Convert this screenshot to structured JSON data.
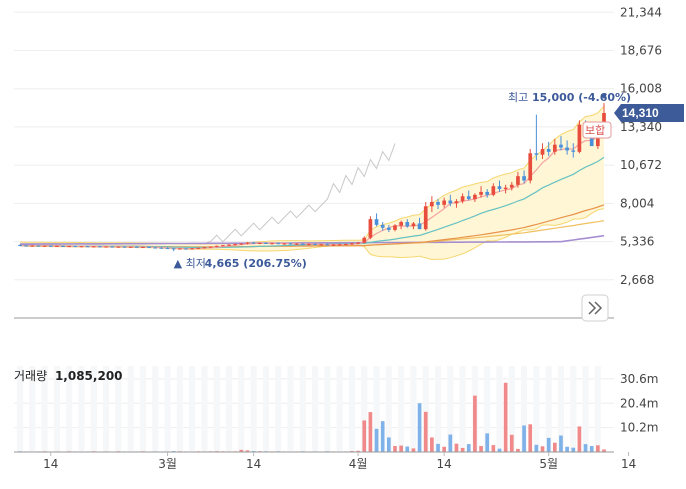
{
  "chart_data": [
    {
      "type": "candlestick",
      "panel": "price",
      "y_ticks": [
        "21,344",
        "18,676",
        "16,008",
        "13,340",
        "10,672",
        "8,004",
        "5,336",
        "2,668"
      ],
      "y_tick_values": [
        21344,
        18676,
        16008,
        13340,
        10672,
        8004,
        5336,
        2668
      ],
      "ylim": [
        0,
        22200
      ],
      "current_price": "14,310",
      "current_price_value": 14310,
      "unchanged_label": "보합",
      "high_label": {
        "prefix": "최고",
        "text": "15,000 (-4.60%)",
        "value": 15000
      },
      "low_label": {
        "prefix": "▲ 최저",
        "text": "4,665 (206.75%)",
        "value": 4665
      },
      "expand_icon": "double-chevron-right-icon",
      "colors": {
        "up": "#e74c3c",
        "down": "#4a90d9",
        "band": "#fff6d5",
        "band_line": "#f5d76e",
        "ma5": "#f4a3a3",
        "ma20": "#66c2c2",
        "ma60": "#e8944a",
        "ma120": "#f0c060",
        "compare": "#cccccc",
        "purple": "#a58fd0",
        "badge": "#3d5a99"
      },
      "candles": [
        [
          5100,
          5140,
          5020,
          5060
        ],
        [
          5060,
          5100,
          4990,
          5020
        ],
        [
          5020,
          5080,
          4980,
          5050
        ],
        [
          5050,
          5090,
          5000,
          5010
        ],
        [
          5010,
          5060,
          4970,
          5040
        ],
        [
          5040,
          5080,
          5000,
          5000
        ],
        [
          5000,
          5050,
          4960,
          5030
        ],
        [
          5030,
          5070,
          4990,
          4990
        ],
        [
          4990,
          5040,
          4950,
          5020
        ],
        [
          5020,
          5060,
          4980,
          4980
        ],
        [
          4980,
          5030,
          4940,
          5010
        ],
        [
          5010,
          5050,
          4970,
          4970
        ],
        [
          4970,
          5020,
          4930,
          5000
        ],
        [
          5000,
          5040,
          4960,
          4960
        ],
        [
          4960,
          5010,
          4920,
          4990
        ],
        [
          4990,
          5030,
          4950,
          4950
        ],
        [
          4950,
          5000,
          4910,
          4980
        ],
        [
          4980,
          5020,
          4940,
          4940
        ],
        [
          4940,
          4990,
          4900,
          4970
        ],
        [
          4970,
          5010,
          4930,
          4930
        ],
        [
          4930,
          4980,
          4890,
          4960
        ],
        [
          4960,
          5000,
          4920,
          4920
        ],
        [
          4920,
          4970,
          4880,
          4900
        ],
        [
          4900,
          4950,
          4860,
          4880
        ],
        [
          4880,
          4930,
          4840,
          4860
        ],
        [
          4860,
          4900,
          4665,
          4820
        ],
        [
          4820,
          4880,
          4780,
          4850
        ],
        [
          4850,
          4900,
          4810,
          4830
        ],
        [
          4830,
          4880,
          4790,
          4860
        ],
        [
          4860,
          4920,
          4820,
          4900
        ],
        [
          4900,
          4960,
          4860,
          4940
        ],
        [
          4940,
          5000,
          4900,
          4980
        ],
        [
          4980,
          5060,
          4940,
          5040
        ],
        [
          5040,
          5100,
          5000,
          5080
        ],
        [
          5080,
          5140,
          5020,
          5120
        ],
        [
          5120,
          5200,
          5060,
          5160
        ],
        [
          5160,
          5220,
          5100,
          5200
        ],
        [
          5200,
          5300,
          5140,
          5260
        ],
        [
          5260,
          5320,
          5180,
          5220
        ],
        [
          5220,
          5280,
          5160,
          5240
        ],
        [
          5240,
          5300,
          5180,
          5200
        ],
        [
          5200,
          5260,
          5140,
          5220
        ],
        [
          5220,
          5280,
          5160,
          5180
        ],
        [
          5180,
          5240,
          5120,
          5200
        ],
        [
          5200,
          5260,
          5140,
          5160
        ],
        [
          5160,
          5220,
          5100,
          5180
        ],
        [
          5180,
          5240,
          5120,
          5140
        ],
        [
          5140,
          5200,
          5080,
          5160
        ],
        [
          5160,
          5220,
          5100,
          5120
        ],
        [
          5120,
          5180,
          5060,
          5140
        ],
        [
          5140,
          5200,
          5080,
          5100
        ],
        [
          5100,
          5160,
          5040,
          5120
        ],
        [
          5120,
          5180,
          5060,
          5140
        ],
        [
          5140,
          5200,
          5080,
          5160
        ],
        [
          5160,
          5240,
          5100,
          5220
        ],
        [
          5220,
          5300,
          5160,
          5260
        ],
        [
          5260,
          5700,
          5200,
          5600
        ],
        [
          5600,
          7100,
          5500,
          6900
        ],
        [
          6900,
          7300,
          6400,
          6500
        ],
        [
          6500,
          6700,
          6100,
          6300
        ],
        [
          6300,
          6500,
          6000,
          6150
        ],
        [
          6150,
          6550,
          6050,
          6450
        ],
        [
          6450,
          6800,
          6200,
          6700
        ],
        [
          6700,
          6900,
          6300,
          6400
        ],
        [
          6400,
          6700,
          6200,
          6600
        ],
        [
          6600,
          7000,
          6400,
          6200
        ],
        [
          6200,
          8100,
          6100,
          7800
        ],
        [
          7800,
          8500,
          7400,
          8100
        ],
        [
          8100,
          8300,
          7600,
          7900
        ],
        [
          7900,
          8400,
          7700,
          8200
        ],
        [
          8200,
          8600,
          7800,
          8000
        ],
        [
          8000,
          8300,
          7700,
          8150
        ],
        [
          8150,
          8700,
          8000,
          8500
        ],
        [
          8500,
          8900,
          8200,
          8300
        ],
        [
          8300,
          8700,
          8100,
          8600
        ],
        [
          8600,
          9200,
          8400,
          8800
        ],
        [
          8800,
          9000,
          8400,
          8600
        ],
        [
          8600,
          9400,
          8500,
          9200
        ],
        [
          9200,
          9600,
          8800,
          9000
        ],
        [
          9000,
          9300,
          8700,
          9100
        ],
        [
          9100,
          9500,
          8900,
          9300
        ],
        [
          9300,
          10200,
          9100,
          9900
        ],
        [
          9900,
          10300,
          9400,
          9600
        ],
        [
          9600,
          11800,
          9400,
          11500
        ],
        [
          11500,
          14200,
          11000,
          11400
        ],
        [
          11400,
          12200,
          11100,
          11800
        ],
        [
          11800,
          12300,
          11300,
          11600
        ],
        [
          11600,
          12500,
          11400,
          12100
        ],
        [
          12100,
          12700,
          11700,
          11900
        ],
        [
          11900,
          12400,
          11400,
          11700
        ],
        [
          11700,
          12200,
          11200,
          11600
        ],
        [
          11600,
          13800,
          11500,
          13500
        ],
        [
          13500,
          13800,
          12900,
          13200
        ],
        [
          13200,
          13400,
          12200,
          12000
        ],
        [
          12000,
          13100,
          11800,
          12900
        ],
        [
          12900,
          15000,
          12700,
          14310
        ]
      ],
      "volume_panel": {
        "title": "거래량",
        "current_volume": "1,085,200",
        "y_ticks": [
          "30.6m",
          "20.4m",
          "10.2m"
        ],
        "y_tick_values": [
          30600000,
          20400000,
          10200000
        ],
        "ylim": [
          0,
          36000000
        ],
        "volumes": [
          300000,
          250000,
          200000,
          250000,
          300000,
          200000,
          250000,
          200000,
          300000,
          250000,
          200000,
          250000,
          300000,
          200000,
          250000,
          200000,
          300000,
          250000,
          200000,
          250000,
          300000,
          200000,
          250000,
          200000,
          250000,
          400000,
          300000,
          250000,
          200000,
          300000,
          250000,
          300000,
          350000,
          300000,
          250000,
          300000,
          900000,
          700000,
          400000,
          350000,
          300000,
          250000,
          300000,
          250000,
          200000,
          250000,
          300000,
          200000,
          250000,
          200000,
          300000,
          250000,
          200000,
          250000,
          400000,
          500000,
          13200000,
          16700000,
          9700000,
          12900000,
          6100000,
          2500000,
          2700000,
          2300000,
          1500000,
          20400000,
          16800000,
          6100000,
          3400000,
          2200000,
          7300000,
          3500000,
          1700000,
          3300000,
          23600000,
          2500000,
          7800000,
          2900000,
          1400000,
          29000000,
          7200000,
          1300000,
          11100000,
          11600000,
          3000000,
          2400000,
          5900000,
          3900000,
          6900000,
          2200000,
          1800000,
          10700000,
          3300000,
          2500000,
          2800000,
          1085200
        ]
      },
      "x_ticks": [
        "14",
        "3월",
        "14",
        "4월",
        "14",
        "5월",
        "14"
      ],
      "x_tick_index": [
        5,
        24,
        38,
        55,
        69,
        86,
        99
      ]
    }
  ]
}
